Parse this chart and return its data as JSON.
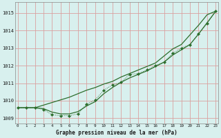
{
  "xlabel": "Graphe pression niveau de la mer (hPa)",
  "x_hours": [
    0,
    1,
    2,
    3,
    4,
    5,
    6,
    7,
    8,
    9,
    10,
    11,
    12,
    13,
    14,
    15,
    16,
    17,
    18,
    19,
    20,
    21,
    22,
    23
  ],
  "dotted_y": [
    1009.6,
    1009.6,
    1009.6,
    1009.5,
    1009.2,
    1009.15,
    1009.15,
    1009.25,
    1009.8,
    1010.05,
    1010.6,
    1010.9,
    1011.05,
    1011.5,
    1011.55,
    1011.75,
    1012.0,
    1012.2,
    1012.7,
    1013.0,
    1013.2,
    1013.8,
    1014.4,
    1015.1
  ],
  "smooth_upper": [
    1009.6,
    1009.6,
    1009.6,
    1009.75,
    1009.9,
    1010.05,
    1010.2,
    1010.4,
    1010.6,
    1010.75,
    1010.95,
    1011.1,
    1011.35,
    1011.55,
    1011.75,
    1011.95,
    1012.15,
    1012.55,
    1012.95,
    1013.2,
    1013.75,
    1014.3,
    1014.9,
    1015.1
  ],
  "smooth_lower": [
    1009.6,
    1009.6,
    1009.6,
    1009.55,
    1009.35,
    1009.25,
    1009.25,
    1009.38,
    1009.7,
    1009.95,
    1010.4,
    1010.75,
    1011.05,
    1011.3,
    1011.5,
    1011.7,
    1011.95,
    1012.2,
    1012.6,
    1012.9,
    1013.2,
    1013.8,
    1014.45,
    1015.1
  ],
  "bg_color": "#d8f0ee",
  "grid_color": "#daa0a0",
  "line_color": "#2d6e2d",
  "marker_color": "#2d6e2d",
  "ylim": [
    1008.7,
    1015.6
  ],
  "yticks": [
    1009,
    1010,
    1011,
    1012,
    1013,
    1014,
    1015
  ],
  "figsize": [
    3.2,
    2.0
  ],
  "dpi": 100
}
